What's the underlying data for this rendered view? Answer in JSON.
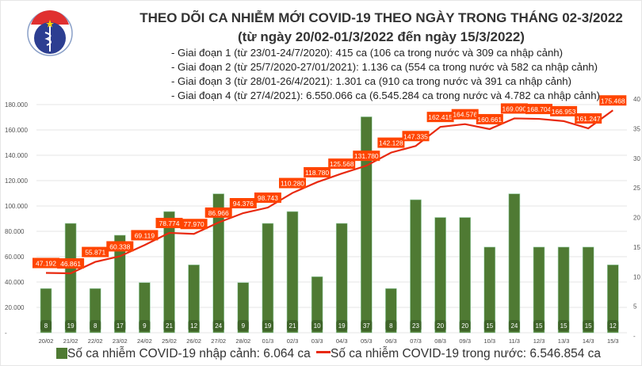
{
  "logo": {
    "text_top": "BỘ Y TẾ",
    "text_bottom": "MINISTRY OF HEALTH"
  },
  "header": {
    "title": "THEO DÕI CA NHIỄM MỚI COVID-19 THEO NGÀY TRONG THÁNG 02-3/2022",
    "subtitle": "(từ ngày 20/02-01/3/2022 đến ngày 15/3/2022)",
    "phases": [
      "- Giai đoạn 1 (từ 23/01-24/7/2020): 415 ca (106 ca trong nước và 309 ca nhập cảnh)",
      "- Giai đoạn 2 (từ 25/7/2020-27/01/2021): 1.136 ca (554 ca trong nước và 582 ca nhập cảnh)",
      "- Giai đoạn 3 (từ 28/01-26/4/2021): 1.301 ca (910 ca trong nước và 391 ca nhập cảnh)",
      "- Giai đoạn 4 (từ 27/4/2021): 6.550.066 ca (6.545.284 ca trong nước và 4.782 ca nhập cảnh)"
    ]
  },
  "chart_data": {
    "type": "bar+line",
    "categories": [
      "20/02",
      "21/02",
      "22/02",
      "23/02",
      "24/02",
      "25/02",
      "26/02",
      "27/02",
      "28/02",
      "01/3",
      "02/3",
      "03/3",
      "04/3",
      "05/3",
      "06/3",
      "07/3",
      "08/3",
      "09/3",
      "10/3",
      "11/3",
      "12/3",
      "13/3",
      "14/3",
      "15/3"
    ],
    "series": [
      {
        "name": "Số ca nhiễm COVID-19 nhập cảnh: 6.064 ca",
        "type": "bar",
        "axis": "right",
        "color": "#4f7a33",
        "values": [
          8,
          19,
          8,
          17,
          9,
          21,
          12,
          24,
          9,
          19,
          21,
          10,
          19,
          37,
          8,
          23,
          20,
          20,
          15,
          24,
          15,
          15,
          15,
          12
        ]
      },
      {
        "name": "Số ca nhiễm COVID-19 trong nước: 6.546.854 ca",
        "type": "line",
        "axis": "left",
        "color": "#e8290f",
        "values": [
          47192,
          46861,
          55871,
          60338,
          69119,
          78774,
          77970,
          86966,
          94376,
          98743,
          110280,
          118780,
          125568,
          131780,
          142128,
          147335,
          162415,
          164576,
          160661,
          169090,
          168704,
          166953,
          161247,
          175468
        ],
        "labels": [
          "47.192",
          "46.861",
          "55.871",
          "60.338",
          "69.119",
          "78.774",
          "77.970",
          "86.966",
          "94.376",
          "98.743",
          "110.280",
          "118.780",
          "125.568",
          "131.780",
          "142.128",
          "147.335",
          "162.415",
          "164.576",
          "160.661",
          "169.090",
          "168.704",
          "166.953",
          "161.247",
          "175.468"
        ]
      }
    ],
    "left_axis": {
      "range": [
        0,
        180000
      ],
      "ticks": [
        "-",
        "20.000",
        "40.000",
        "60.000",
        "80.000",
        "100.000",
        "120.000",
        "140.000",
        "160.000",
        "180.000"
      ]
    },
    "right_axis": {
      "range": [
        0,
        40
      ],
      "ticks": [
        "-",
        "5",
        "10",
        "15",
        "20",
        "25",
        "30",
        "35",
        "40"
      ]
    },
    "grid": true,
    "legend": "bottom"
  }
}
